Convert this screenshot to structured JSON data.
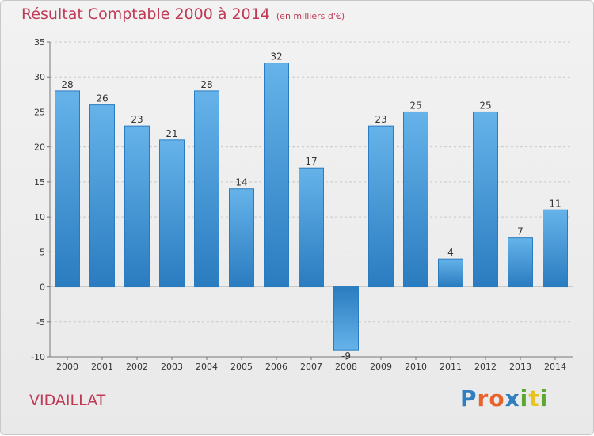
{
  "header": {
    "title": "Résultat Comptable 2000 à 2014",
    "unit": "(en milliers d'€)"
  },
  "footer": {
    "commune": "VIDAILLAT",
    "logo_letters": [
      "P",
      "r",
      "o",
      "x",
      "i",
      "t",
      "i"
    ],
    "logo_colors": [
      "#2f7fc0",
      "#e8622a",
      "#e8622a",
      "#2f7fc0",
      "#5aa832",
      "#e8c21f",
      "#5aa832"
    ]
  },
  "chart_data": {
    "type": "bar",
    "title": "Résultat Comptable 2000 à 2014",
    "subtitle": "(en milliers d'€)",
    "categories": [
      "2000",
      "2001",
      "2002",
      "2003",
      "2004",
      "2005",
      "2006",
      "2007",
      "2008",
      "2009",
      "2010",
      "2011",
      "2012",
      "2013",
      "2014"
    ],
    "values": [
      28,
      26,
      23,
      21,
      28,
      14,
      32,
      17,
      -9,
      23,
      25,
      4,
      25,
      7,
      11
    ],
    "ylim": [
      -10,
      35
    ],
    "yticks": [
      -10,
      -5,
      0,
      5,
      10,
      15,
      20,
      25,
      30,
      35
    ],
    "grid": true,
    "bar_color_light": "#66b3ea",
    "bar_color_dark": "#2a7cc0"
  }
}
